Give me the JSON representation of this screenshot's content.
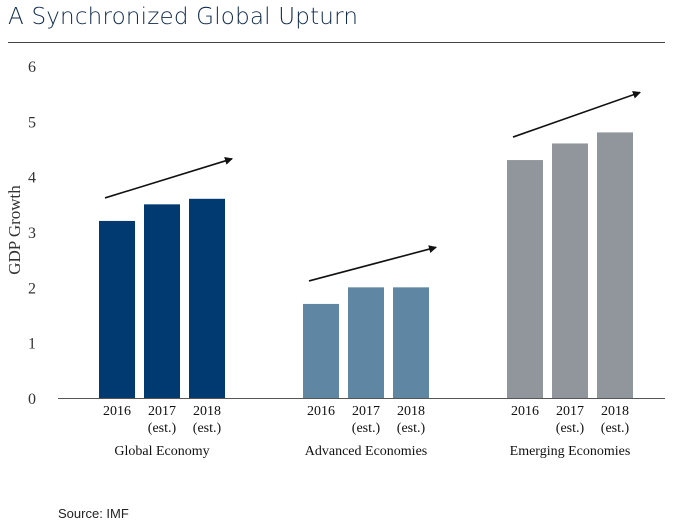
{
  "title": "A Synchronized Global Upturn",
  "source": "Source: IMF",
  "chart_data": {
    "type": "bar",
    "ylabel": "GDP Growth",
    "ylim": [
      0,
      6
    ],
    "yticks": [
      0,
      1,
      2,
      3,
      4,
      5,
      6
    ],
    "grid": false,
    "categories": [
      [
        "2016"
      ],
      [
        "2017",
        "(est.)"
      ],
      [
        "2018",
        "(est.)"
      ]
    ],
    "groups": [
      {
        "name": "Global Economy",
        "color": "#003a70",
        "values": [
          3.2,
          3.5,
          3.6
        ]
      },
      {
        "name": "Advanced Economies",
        "color": "#5f87a4",
        "values": [
          1.7,
          2.0,
          2.0
        ]
      },
      {
        "name": "Emerging Economies",
        "color": "#90969c",
        "values": [
          4.3,
          4.6,
          4.8
        ]
      }
    ],
    "annotations": "upward trend arrow above each group"
  }
}
